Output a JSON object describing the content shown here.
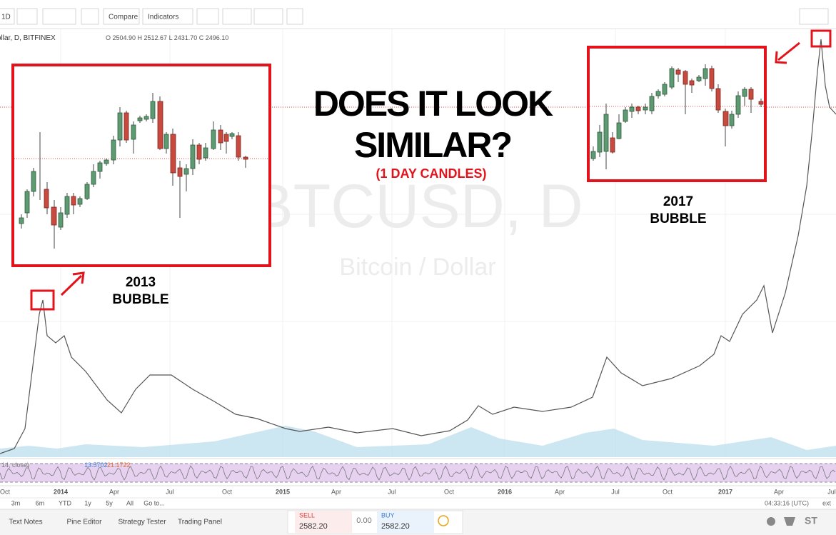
{
  "toolbar": {
    "interval": "1D",
    "compare": "Compare",
    "indicators": "Indicators"
  },
  "legend": {
    "symbol": "ollar, D, BITFINEX",
    "ohlc": "O 2504.90 H 2512.67 L 2431.70 C 2496.10"
  },
  "watermark": {
    "symbol": "BTCUSD, D",
    "description": "Bitcoin / Dollar"
  },
  "annotations": {
    "headline": [
      "DOES IT LOOK",
      "SIMILAR?"
    ],
    "subtitle": "(1 DAY CANDLES)",
    "left_label": [
      "2013",
      "BUBBLE"
    ],
    "right_label": [
      "2017",
      "BUBBLE"
    ]
  },
  "indicator": {
    "label": "14, close)",
    "values": [
      "13.5702",
      "21.1722"
    ]
  },
  "x_axis": [
    "Oct",
    "2014",
    "Apr",
    "Jul",
    "Oct",
    "2015",
    "Apr",
    "Jul",
    "Oct",
    "2016",
    "Apr",
    "Jul",
    "Oct",
    "2017",
    "Apr",
    "Jul"
  ],
  "ranges": [
    "3m",
    "6m",
    "YTD",
    "1y",
    "5y",
    "All",
    "Go to..."
  ],
  "clock": "04:33:16 (UTC)",
  "ext": "ext",
  "bottom_tabs": [
    "Text Notes",
    "Pine Editor",
    "Strategy Tester",
    "Trading Panel"
  ],
  "trade": {
    "sell_label": "SELL",
    "sell_price": "2582.20",
    "spread": "0.00",
    "buy_label": "BUY",
    "buy_price": "2582.20"
  },
  "footer_badge": "ST"
}
